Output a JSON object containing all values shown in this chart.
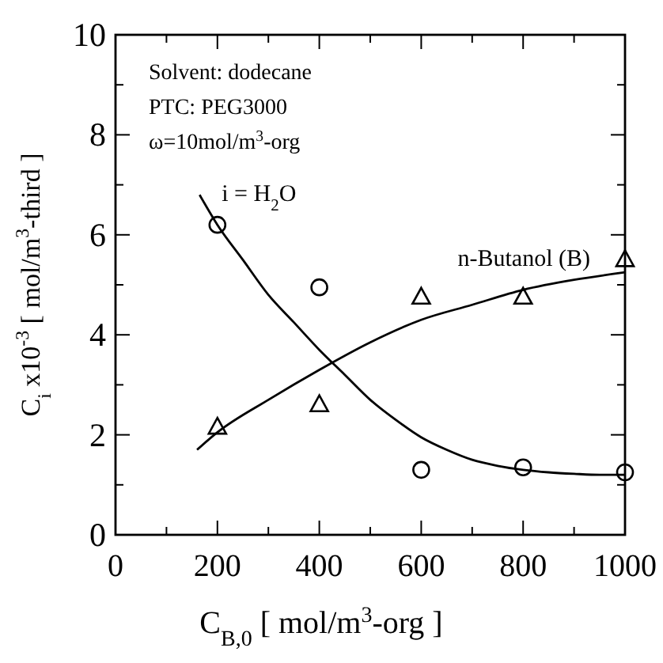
{
  "chart_data": {
    "type": "scatter",
    "xlabel": "C$_{B,0}$ [ mol/m$^{3}$-org ]",
    "ylabel": "C$_{i}$ x10$^{-3}$  [ mol/m$^{3}$-third ]",
    "annotations": [
      "Solvent: dodecane",
      "PTC:  PEG3000",
      "ω=10mol/m$^{3}$-org"
    ],
    "xlim": [
      0,
      1000
    ],
    "xticks": [
      0,
      {
        "value": 100,
        "label": null
      },
      200,
      {
        "value": 300,
        "label": null
      },
      400,
      {
        "value": 500,
        "label": null
      },
      600,
      {
        "value": 700,
        "label": null
      },
      800,
      {
        "value": 900,
        "label": null
      },
      1000
    ],
    "ylim": [
      0,
      10
    ],
    "yticks": [
      0,
      {
        "value": 1,
        "label": null
      },
      2,
      {
        "value": 3,
        "label": null
      },
      4,
      {
        "value": 5,
        "label": null
      },
      6,
      {
        "value": 7,
        "label": null
      },
      8,
      {
        "value": 9,
        "label": null
      },
      10
    ],
    "grid": false,
    "series": [
      {
        "marker": "circle",
        "color": "#000000",
        "x": [
          200,
          400,
          600,
          800,
          1000
        ],
        "values": [
          6.2,
          4.95,
          1.3,
          1.35,
          1.25
        ]
      },
      {
        "marker": "triangle",
        "color": "#000000",
        "x": [
          200,
          400,
          600,
          800,
          1000
        ],
        "values": [
          2.15,
          2.6,
          4.75,
          4.75,
          5.5
        ]
      },
      {
        "type": "line",
        "marker": "none",
        "name": "i = H$_{2}$O",
        "color": "#000000",
        "x": [
          165,
          200,
          250,
          300,
          350,
          400,
          450,
          500,
          550,
          600,
          650,
          700,
          750,
          800,
          850,
          900,
          950,
          1000
        ],
        "values": [
          6.8,
          6.2,
          5.5,
          4.8,
          4.25,
          3.7,
          3.2,
          2.7,
          2.3,
          1.95,
          1.7,
          1.5,
          1.38,
          1.3,
          1.25,
          1.22,
          1.2,
          1.2
        ]
      },
      {
        "type": "line",
        "marker": "none",
        "name": "n-Butanol (B)",
        "color": "#000000",
        "x": [
          160,
          200,
          300,
          400,
          500,
          600,
          700,
          800,
          900,
          1000
        ],
        "values": [
          1.7,
          2.05,
          2.7,
          3.3,
          3.85,
          4.3,
          4.6,
          4.9,
          5.1,
          5.25
        ]
      }
    ]
  }
}
